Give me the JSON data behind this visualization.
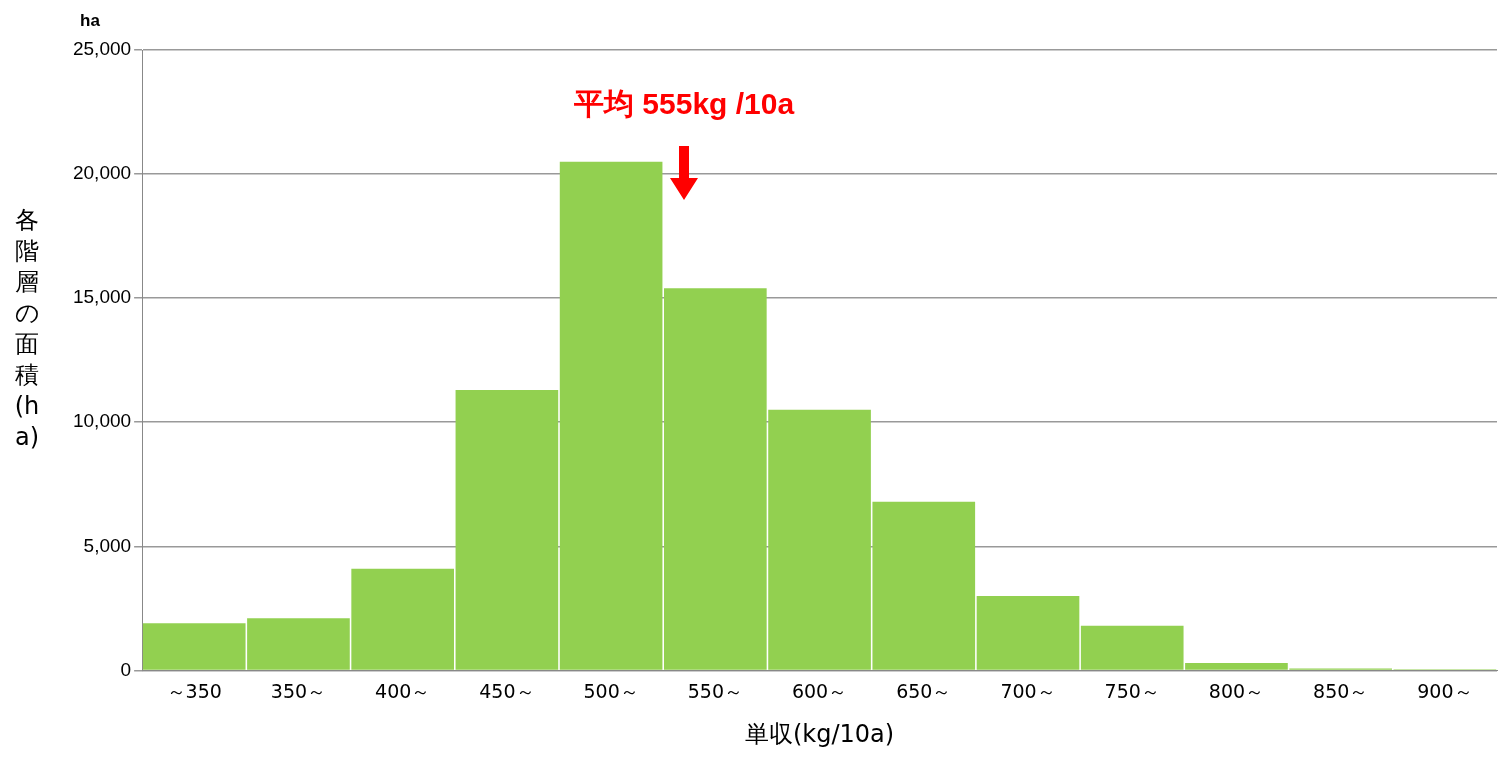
{
  "chart_data": {
    "type": "bar",
    "xlabel": "単収(kg/10a)",
    "ylabel": "各階層の面積(ha)",
    "annotations": [
      "ha",
      "平均 555kg /10a"
    ],
    "categories": [
      "～350",
      "350～",
      "400～",
      "450～",
      "500～",
      "550～",
      "600～",
      "650～",
      "700～",
      "750～",
      "800～",
      "850～",
      "900～"
    ],
    "values": [
      1900,
      2100,
      4100,
      11300,
      20500,
      15400,
      10500,
      6800,
      3000,
      1800,
      300,
      80,
      50
    ],
    "color": "#92d050",
    "ylim": [
      0,
      25000
    ],
    "yticks": [
      {
        "value": 0,
        "label": "0"
      },
      {
        "value": 5000,
        "label": "5,000"
      },
      {
        "value": 10000,
        "label": "10,000"
      },
      {
        "value": 15000,
        "label": "15,000"
      },
      {
        "value": 20000,
        "label": "20,000"
      },
      {
        "value": 25000,
        "label": "25,000"
      }
    ],
    "grid": "y",
    "legend": false
  }
}
